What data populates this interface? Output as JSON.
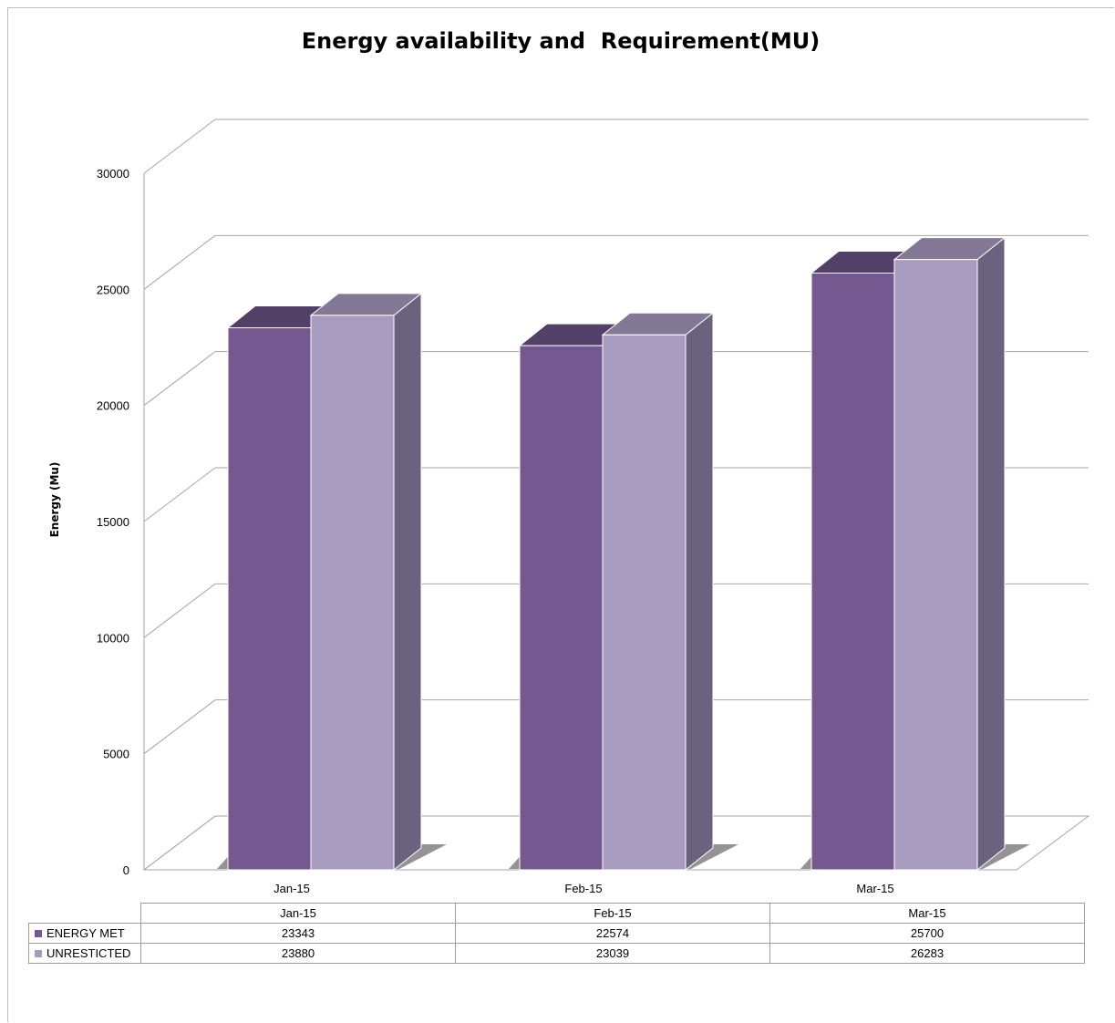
{
  "chart_data": {
    "type": "bar",
    "title": "Energy availability and  Requirement(MU)",
    "ylabel": "Energy (Mu)",
    "xlabel": "",
    "ylim": [
      0,
      30000
    ],
    "yticks": [
      "0",
      "5000",
      "10000",
      "15000",
      "20000",
      "25000",
      "30000"
    ],
    "categories": [
      "Jan-15",
      "Feb-15",
      "Mar-15"
    ],
    "series": [
      {
        "name": "ENERGY MET",
        "values": [
          23343,
          22574,
          25700
        ],
        "value_labels": [
          "23343",
          "22574",
          "25700"
        ],
        "color": "#735990"
      },
      {
        "name": "UNRESTICTED",
        "values": [
          23880,
          23039,
          26283
        ],
        "value_labels": [
          "23880",
          "23039",
          "26283"
        ],
        "color": "#a89bc0"
      }
    ],
    "grid": true,
    "legend": "data table below chart",
    "style": "3d-clustered-column"
  }
}
